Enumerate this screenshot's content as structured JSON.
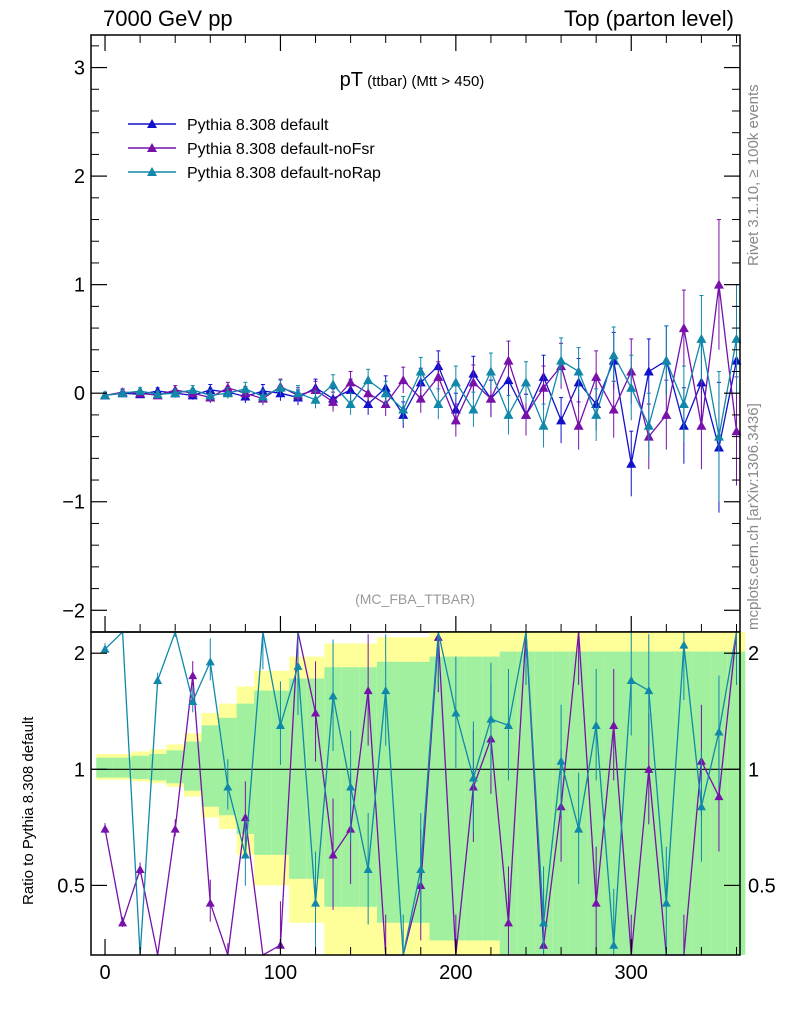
{
  "header": {
    "left": "7000 GeV pp",
    "right": "Top (parton level)",
    "side_rivet": "Rivet 3.1.10, ≥ 100k events",
    "side_mcplots": "mcplots.cern.ch [arXiv:1306.3436]"
  },
  "chart_data": {
    "type": "line",
    "title_main": "pT",
    "title_sub": "(ttbar) (Mtt > 450)",
    "watermark": "(MC_FBA_TTBAR)",
    "xlim": [
      -8,
      362
    ],
    "ylim": [
      -2.2,
      3.3
    ],
    "ratio_ylim": [
      0.33,
      2.27
    ],
    "ratio_ylabel": "Ratio to Pythia 8.308 default",
    "x_ticks": [
      0,
      100,
      200,
      300
    ],
    "x_tick_labels": [
      "0",
      "100",
      "200",
      "300"
    ],
    "y_ticks": [
      -2,
      -1,
      0,
      1,
      2,
      3
    ],
    "y_tick_labels": [
      "−2",
      "−1",
      "0",
      "1",
      "2",
      "3"
    ],
    "ratio_ticks": [
      0.5,
      1,
      2
    ],
    "ratio_tick_labels": [
      "0.5",
      "1",
      "2"
    ],
    "legend_position": "top-left",
    "series": [
      {
        "name": "Pythia 8.308 default",
        "color": "#1111cc"
      },
      {
        "name": "Pythia 8.308 default-noFsr",
        "color": "#7711aa"
      },
      {
        "name": "Pythia 8.308 default-noRap",
        "color": "#1188aa"
      }
    ],
    "x": [
      0,
      10,
      20,
      30,
      40,
      50,
      60,
      70,
      80,
      90,
      100,
      110,
      120,
      130,
      140,
      150,
      160,
      170,
      180,
      190,
      200,
      210,
      220,
      230,
      240,
      250,
      260,
      270,
      280,
      290,
      300,
      310,
      320,
      330,
      340,
      350,
      360
    ],
    "main_values": [
      [
        -0.02,
        0.0,
        -0.01,
        0.02,
        0.0,
        -0.02,
        0.03,
        0.01,
        -0.03,
        0.02,
        0.0,
        -0.04,
        0.05,
        -0.05,
        0.03,
        -0.1,
        0.05,
        -0.2,
        0.1,
        0.25,
        -0.15,
        0.18,
        -0.05,
        0.12,
        -0.2,
        0.15,
        -0.25,
        0.1,
        -0.1,
        0.3,
        -0.65,
        0.2,
        0.3,
        -0.3,
        0.1,
        -0.5,
        0.3
      ],
      [
        -0.02,
        0.01,
        0.0,
        -0.02,
        0.03,
        0.0,
        -0.04,
        0.05,
        0.0,
        -0.05,
        0.06,
        -0.02,
        0.03,
        -0.08,
        0.1,
        0.0,
        -0.1,
        0.12,
        -0.05,
        0.15,
        -0.25,
        0.1,
        -0.05,
        0.3,
        -0.2,
        0.05,
        0.25,
        -0.3,
        0.15,
        -0.15,
        0.2,
        -0.4,
        -0.2,
        0.6,
        -0.3,
        1.0,
        -0.35
      ],
      [
        -0.02,
        0.0,
        0.02,
        -0.01,
        0.0,
        0.03,
        -0.02,
        0.0,
        0.04,
        -0.03,
        0.05,
        0.0,
        -0.06,
        0.08,
        -0.1,
        0.12,
        0.0,
        -0.15,
        0.2,
        -0.1,
        0.1,
        -0.15,
        0.2,
        -0.2,
        0.1,
        -0.3,
        0.3,
        0.2,
        -0.2,
        0.35,
        0.05,
        -0.3,
        0.3,
        -0.1,
        0.5,
        -0.4,
        0.5
      ]
    ],
    "main_errors": [
      0.03,
      0.03,
      0.03,
      0.03,
      0.04,
      0.04,
      0.05,
      0.05,
      0.06,
      0.06,
      0.07,
      0.07,
      0.08,
      0.09,
      0.1,
      0.1,
      0.11,
      0.12,
      0.13,
      0.14,
      0.15,
      0.16,
      0.17,
      0.18,
      0.19,
      0.2,
      0.21,
      0.22,
      0.24,
      0.26,
      0.3,
      0.3,
      0.32,
      0.35,
      0.4,
      0.6,
      0.5
    ],
    "ratio_values": [
      [
        0.7,
        0.4,
        0.55,
        0.25,
        0.7,
        1.75,
        0.45,
        0.3,
        0.75,
        0.2,
        0.35,
        2.3,
        1.4,
        0.6,
        0.7,
        1.6,
        0.3,
        0.2,
        0.5,
        2.2,
        0.3,
        0.9,
        1.2,
        0.4,
        2.3,
        0.35,
        0.8,
        2.3,
        0.45,
        1.3,
        0.3,
        1.0,
        0.2,
        0.3,
        1.05,
        0.85,
        2.3
      ],
      [
        2.05,
        2.3,
        0.3,
        1.7,
        2.3,
        1.5,
        1.9,
        0.9,
        0.6,
        2.3,
        1.3,
        1.85,
        0.45,
        1.55,
        0.9,
        0.55,
        1.6,
        0.3,
        0.55,
        2.3,
        1.4,
        0.95,
        1.35,
        1.3,
        2.3,
        0.4,
        1.05,
        0.7,
        1.3,
        0.35,
        1.7,
        1.6,
        0.45,
        2.1,
        0.8,
        1.25,
        2.3
      ]
    ],
    "band_half_width": [
      0.06,
      0.06,
      0.07,
      0.08,
      0.1,
      0.15,
      0.25,
      0.3,
      0.4,
      0.5,
      0.5,
      0.6,
      0.6,
      0.7,
      0.7,
      0.7,
      0.75,
      0.75,
      0.75,
      0.8,
      0.8,
      0.8,
      0.8,
      0.85,
      0.85,
      0.85,
      0.85,
      0.85,
      0.85,
      0.85,
      0.85,
      0.85,
      0.85,
      0.85,
      0.85,
      0.85,
      0.85
    ]
  }
}
